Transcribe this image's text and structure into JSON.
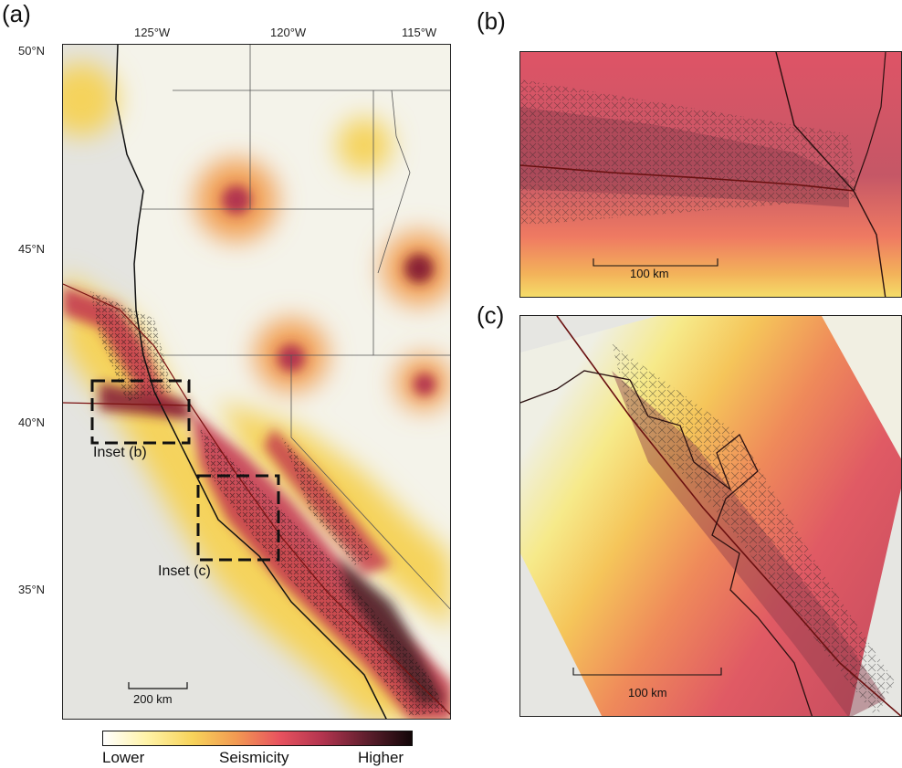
{
  "panels": {
    "a": {
      "letter": "(a)"
    },
    "b": {
      "letter": "(b)"
    },
    "c": {
      "letter": "(c)"
    }
  },
  "axes": {
    "lon_ticks": [
      "125°W",
      "120°W",
      "115°W"
    ],
    "lat_ticks": [
      "50°N",
      "45°N",
      "40°N",
      "35°N"
    ]
  },
  "insets": {
    "b_label": "Inset (b)",
    "c_label": "Inset (c)"
  },
  "scalebars": {
    "a": "200 km",
    "b": "100 km",
    "c": "100 km"
  },
  "colorbar": {
    "low": "Lower",
    "title": "Seismicity",
    "high": "Higher",
    "colors": [
      "#ffffff",
      "#fff3a8",
      "#f7d35a",
      "#f29a52",
      "#e8535f",
      "#b3344f",
      "#5b1e2c",
      "#120608"
    ]
  }
}
